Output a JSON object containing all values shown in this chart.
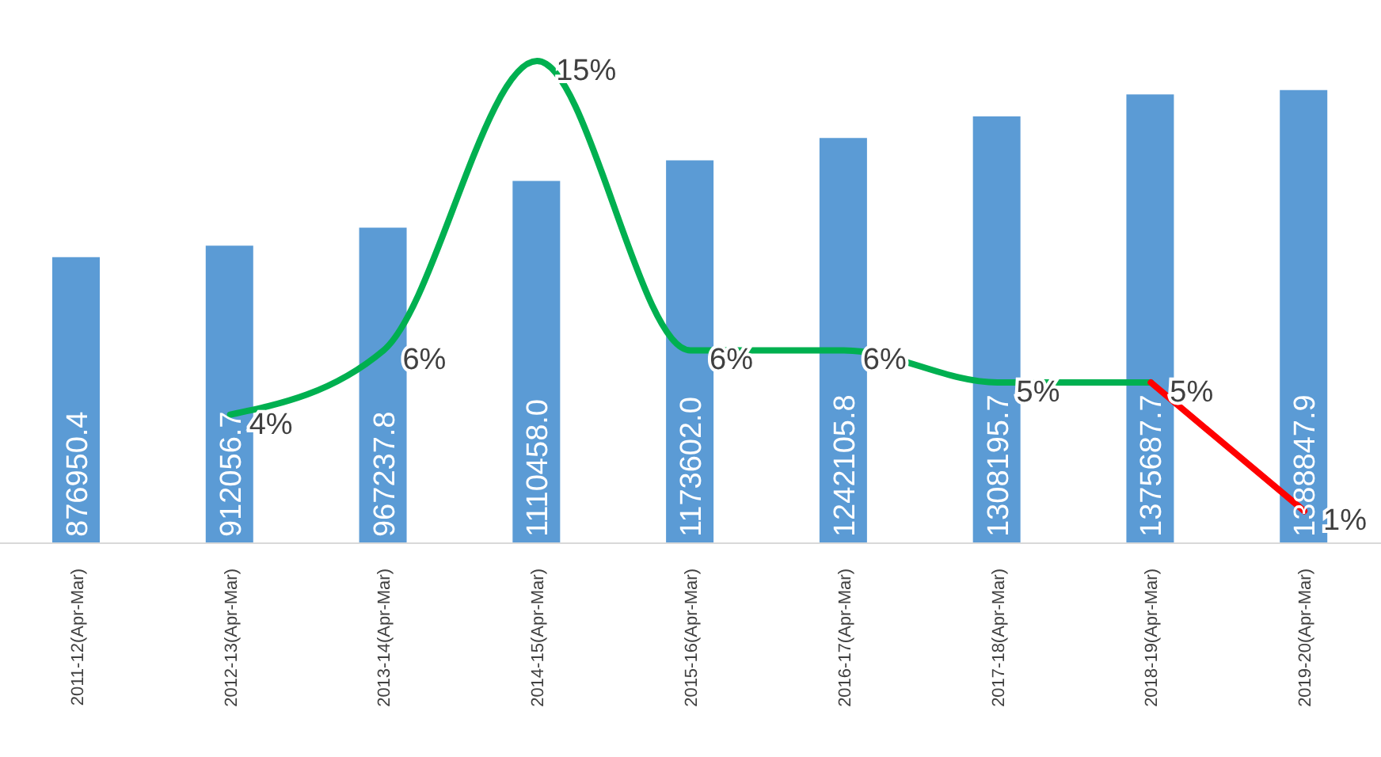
{
  "chart_data": {
    "type": "bar",
    "categories": [
      "2011-12(Apr-Mar)",
      "2012-13(Apr-Mar)",
      "2013-14(Apr-Mar)",
      "2014-15(Apr-Mar)",
      "2015-16(Apr-Mar)",
      "2016-17(Apr-Mar)",
      "2017-18(Apr-Mar)",
      "2018-19(Apr-Mar)",
      "2019-20(Apr-Mar)"
    ],
    "series": [
      {
        "color": "#5b9bd5",
        "values": [
          876950.4,
          912056.7,
          967237.8,
          1110458.0,
          1173602.0,
          1242105.8,
          1308195.7,
          1375687.7,
          1388847.9
        ],
        "value_labels": [
          "876950.4",
          "912056.7",
          "967237.8",
          "1110458.0",
          "1173602.0",
          "1242105.8",
          "1308195.7",
          "1375687.7",
          "1388847.9"
        ]
      },
      {
        "type": "line",
        "axis": "y2",
        "color": "#00b050",
        "values": [
          null,
          4,
          6,
          15,
          6,
          6,
          5,
          5,
          null
        ],
        "value_labels": [
          null,
          "4%",
          "6%",
          "15%",
          "6%",
          "6%",
          "5%",
          "5%",
          null
        ]
      },
      {
        "type": "line",
        "axis": "y2",
        "color": "#ff0000",
        "values": [
          null,
          null,
          null,
          null,
          null,
          null,
          null,
          5,
          1
        ],
        "value_labels": [
          null,
          null,
          null,
          null,
          null,
          null,
          null,
          null,
          "1%"
        ]
      }
    ],
    "ylim": [
      0,
      1665000
    ],
    "y2lim": [
      0,
      16.9
    ],
    "tick_labels": "x",
    "marker": "none",
    "line_style": "solid"
  }
}
